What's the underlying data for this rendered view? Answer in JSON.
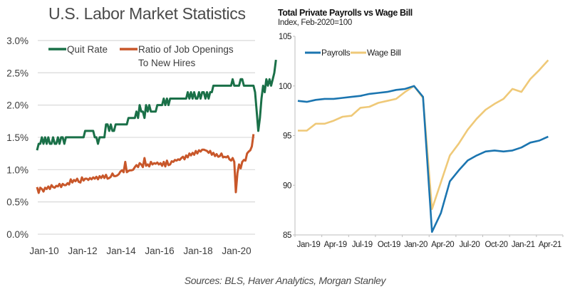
{
  "footer": "Sources: BLS, Haver Analytics, Morgan Stanley",
  "chart_data": [
    {
      "type": "line",
      "title": "U.S. Labor Market Statistics",
      "xlabel": "",
      "ylabel": "",
      "ylim": [
        0,
        3.0
      ],
      "xlim": [
        "Jan-10",
        "Apr-21"
      ],
      "y_ticks": [
        "0.0%",
        "0.5%",
        "1.0%",
        "1.5%",
        "2.0%",
        "2.5%",
        "3.0%"
      ],
      "x_ticks": [
        "Jan-10",
        "Jan-12",
        "Jan-14",
        "Jan-16",
        "Jan-18",
        "Jan-20"
      ],
      "grid": true,
      "legend": "top-left",
      "colors": {
        "quit_rate": "#1a7048",
        "ratio": "#c8572a"
      },
      "series": [
        {
          "name": "Quit Rate",
          "label": "Quit Rate",
          "start": "Jan-10",
          "values": [
            1.3,
            1.4,
            1.4,
            1.5,
            1.4,
            1.5,
            1.4,
            1.5,
            1.4,
            1.4,
            1.5,
            1.4,
            1.4,
            1.5,
            1.4,
            1.5,
            1.5,
            1.4,
            1.5,
            1.5,
            1.5,
            1.5,
            1.5,
            1.5,
            1.5,
            1.5,
            1.5,
            1.5,
            1.5,
            1.5,
            1.6,
            1.6,
            1.6,
            1.6,
            1.6,
            1.6,
            1.5,
            1.5,
            1.4,
            1.5,
            1.5,
            1.5,
            1.5,
            1.7,
            1.7,
            1.6,
            1.7,
            1.6,
            1.6,
            1.7,
            1.7,
            1.7,
            1.7,
            1.7,
            1.7,
            1.7,
            1.7,
            1.8,
            1.8,
            1.8,
            1.8,
            1.8,
            1.9,
            1.8,
            2.0,
            1.9,
            1.9,
            1.8,
            2.0,
            1.9,
            2.0,
            1.9,
            1.9,
            1.9,
            1.9,
            2.0,
            2.0,
            2.0,
            2.0,
            2.1,
            2.0,
            2.1,
            2.0,
            2.1,
            2.1,
            2.1,
            2.1,
            2.1,
            2.1,
            2.1,
            2.1,
            2.1,
            2.1,
            2.1,
            2.2,
            2.1,
            2.2,
            2.1,
            2.2,
            2.1,
            2.1,
            2.2,
            2.1,
            2.2,
            2.2,
            2.1,
            2.2,
            2.1,
            2.2,
            2.2,
            2.3,
            2.3,
            2.3,
            2.3,
            2.3,
            2.3,
            2.3,
            2.3,
            2.3,
            2.3,
            2.3,
            2.3,
            2.4,
            2.3,
            2.3,
            2.3,
            2.3,
            2.4,
            2.4,
            2.3,
            2.3,
            2.3,
            2.3,
            2.3,
            2.3,
            2.3,
            2.2,
            1.9,
            1.6,
            1.8,
            2.1,
            2.3,
            2.2,
            2.4,
            2.3,
            2.4,
            2.3,
            2.4,
            2.5,
            2.7
          ]
        },
        {
          "name": "Ratio of Job Openings To New Hires",
          "label_line1": "Ratio of Job Openings",
          "label_line2": "To New Hires",
          "start": "Jan-10",
          "values": [
            0.73,
            0.64,
            0.72,
            0.7,
            0.66,
            0.72,
            0.7,
            0.74,
            0.7,
            0.76,
            0.73,
            0.72,
            0.75,
            0.74,
            0.78,
            0.73,
            0.78,
            0.76,
            0.76,
            0.79,
            0.77,
            0.85,
            0.8,
            0.84,
            0.82,
            0.86,
            0.81,
            0.8,
            0.88,
            0.83,
            0.86,
            0.86,
            0.84,
            0.87,
            0.85,
            0.88,
            0.86,
            0.89,
            0.85,
            0.9,
            0.87,
            0.91,
            0.87,
            0.92,
            0.86,
            0.87,
            0.89,
            0.94,
            0.9,
            0.9,
            0.91,
            0.93,
            0.97,
            0.99,
            0.96,
            1.12,
            0.96,
            0.98,
            0.99,
            0.99,
            1.0,
            1.04,
            1.07,
            1.04,
            1.1,
            1.08,
            1.04,
            1.18,
            1.06,
            1.08,
            1.05,
            1.12,
            1.08,
            1.1,
            1.09,
            1.11,
            1.08,
            1.1,
            1.06,
            1.12,
            1.05,
            1.14,
            1.07,
            1.08,
            1.13,
            1.12,
            1.15,
            1.14,
            1.16,
            1.15,
            1.18,
            1.2,
            1.16,
            1.22,
            1.19,
            1.25,
            1.22,
            1.26,
            1.23,
            1.29,
            1.25,
            1.3,
            1.28,
            1.31,
            1.31,
            1.3,
            1.29,
            1.26,
            1.29,
            1.23,
            1.26,
            1.21,
            1.24,
            1.2,
            1.21,
            1.25,
            1.19,
            1.2,
            1.19,
            1.21,
            1.16,
            1.14,
            1.18,
            1.12,
            0.65,
            0.95,
            1.08,
            1.02,
            1.12,
            1.15,
            1.14,
            1.25,
            1.28,
            1.3,
            1.36,
            1.55
          ]
        }
      ]
    },
    {
      "type": "line",
      "title": "Total Private Payrolls vs Wage Bill",
      "subtitle": "Index, Feb-2020=100",
      "xlabel": "",
      "ylabel": "",
      "ylim": [
        85,
        105
      ],
      "y_ticks": [
        "85",
        "90",
        "95",
        "100",
        "105"
      ],
      "x_ticks": [
        "Jan-19",
        "Apr-19",
        "Jul-19",
        "Oct-19",
        "Jan-20",
        "Apr-20",
        "Jul-20",
        "Oct-20",
        "Jan-21",
        "Apr-21"
      ],
      "grid": false,
      "legend": "top-left",
      "colors": {
        "payrolls": "#1b75b0",
        "wage_bill": "#efc978"
      },
      "x": [
        "Jan-19",
        "Feb-19",
        "Mar-19",
        "Apr-19",
        "May-19",
        "Jun-19",
        "Jul-19",
        "Aug-19",
        "Sep-19",
        "Oct-19",
        "Nov-19",
        "Dec-19",
        "Jan-20",
        "Feb-20",
        "Mar-20",
        "Apr-20",
        "May-20",
        "Jun-20",
        "Jul-20",
        "Aug-20",
        "Sep-20",
        "Oct-20",
        "Nov-20",
        "Dec-20",
        "Jan-21",
        "Feb-21",
        "Mar-21",
        "Apr-21",
        "May-21"
      ],
      "series": [
        {
          "name": "Payrolls",
          "values": [
            98.5,
            98.4,
            98.6,
            98.7,
            98.7,
            98.8,
            98.9,
            99.0,
            99.2,
            99.3,
            99.4,
            99.6,
            99.7,
            100.0,
            98.9,
            85.3,
            87.2,
            90.4,
            91.5,
            92.5,
            93.0,
            93.4,
            93.5,
            93.4,
            93.5,
            93.8,
            94.3,
            94.5,
            94.9
          ]
        },
        {
          "name": "Wage Bill",
          "values": [
            95.5,
            95.5,
            96.2,
            96.2,
            96.5,
            96.9,
            97.0,
            97.8,
            97.9,
            98.3,
            98.5,
            98.7,
            99.4,
            100.0,
            98.8,
            87.6,
            90.3,
            93.0,
            94.2,
            95.6,
            96.7,
            97.6,
            98.2,
            98.7,
            99.7,
            99.4,
            100.7,
            101.6,
            102.6
          ]
        }
      ]
    }
  ]
}
